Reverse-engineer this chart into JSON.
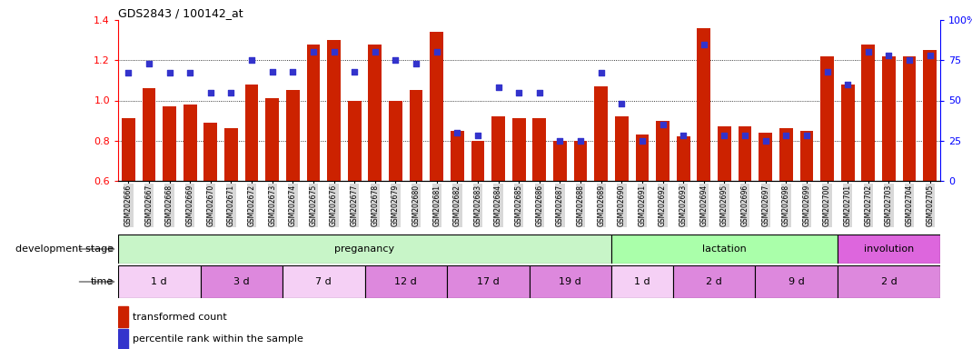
{
  "title": "GDS2843 / 100142_at",
  "samples": [
    "GSM202666",
    "GSM202667",
    "GSM202668",
    "GSM202669",
    "GSM202670",
    "GSM202671",
    "GSM202672",
    "GSM202673",
    "GSM202674",
    "GSM202675",
    "GSM202676",
    "GSM202677",
    "GSM202678",
    "GSM202679",
    "GSM202680",
    "GSM202681",
    "GSM202682",
    "GSM202683",
    "GSM202684",
    "GSM202685",
    "GSM202686",
    "GSM202687",
    "GSM202688",
    "GSM202689",
    "GSM202690",
    "GSM202691",
    "GSM202692",
    "GSM202693",
    "GSM202694",
    "GSM202695",
    "GSM202696",
    "GSM202697",
    "GSM202698",
    "GSM202699",
    "GSM202700",
    "GSM202701",
    "GSM202702",
    "GSM202703",
    "GSM202704",
    "GSM202705"
  ],
  "bar_values": [
    0.91,
    1.06,
    0.97,
    0.98,
    0.89,
    0.86,
    1.08,
    1.01,
    1.05,
    1.28,
    1.3,
    1.0,
    1.28,
    1.0,
    1.05,
    1.34,
    0.85,
    0.8,
    0.92,
    0.91,
    0.91,
    0.8,
    0.8,
    1.07,
    0.92,
    0.83,
    0.9,
    0.82,
    1.36,
    0.87,
    0.87,
    0.84,
    0.86,
    0.85,
    1.22,
    1.08,
    1.28,
    1.22,
    1.22,
    1.25
  ],
  "dot_values": [
    67,
    73,
    67,
    67,
    55,
    55,
    75,
    68,
    68,
    80,
    80,
    68,
    80,
    75,
    73,
    80,
    30,
    28,
    58,
    55,
    55,
    25,
    25,
    67,
    48,
    25,
    35,
    28,
    85,
    28,
    28,
    25,
    28,
    28,
    68,
    60,
    80,
    78,
    75,
    78
  ],
  "ylim_left": [
    0.6,
    1.4
  ],
  "ylim_right": [
    0,
    100
  ],
  "bar_color": "#cc2200",
  "dot_color": "#3333cc",
  "grid_values": [
    0.8,
    1.0,
    1.2
  ],
  "stage_defs": [
    {
      "label": "preganancy",
      "start": 0,
      "end": 24,
      "color": "#c8f5c8"
    },
    {
      "label": "lactation",
      "start": 24,
      "end": 35,
      "color": "#aaffaa"
    },
    {
      "label": "involution",
      "start": 35,
      "end": 40,
      "color": "#dd66dd"
    }
  ],
  "time_block_data": [
    {
      "start": 0,
      "end": 4,
      "color": "#f5d0f5",
      "label": "1 d"
    },
    {
      "start": 4,
      "end": 8,
      "color": "#dd88dd",
      "label": "3 d"
    },
    {
      "start": 8,
      "end": 12,
      "color": "#f5d0f5",
      "label": "7 d"
    },
    {
      "start": 12,
      "end": 16,
      "color": "#dd88dd",
      "label": "12 d"
    },
    {
      "start": 16,
      "end": 20,
      "color": "#dd88dd",
      "label": "17 d"
    },
    {
      "start": 20,
      "end": 24,
      "color": "#dd88dd",
      "label": "19 d"
    },
    {
      "start": 24,
      "end": 27,
      "color": "#f5d0f5",
      "label": "1 d"
    },
    {
      "start": 27,
      "end": 31,
      "color": "#dd88dd",
      "label": "2 d"
    },
    {
      "start": 31,
      "end": 35,
      "color": "#dd88dd",
      "label": "9 d"
    },
    {
      "start": 35,
      "end": 40,
      "color": "#dd88dd",
      "label": "2 d"
    }
  ],
  "stage_label": "development stage",
  "time_label": "time",
  "legend_bar": "transformed count",
  "legend_dot": "percentile rank within the sample",
  "left_yticks": [
    0.6,
    0.8,
    1.0,
    1.2,
    1.4
  ],
  "right_yticks": [
    0,
    25,
    50,
    75,
    100
  ],
  "right_yticklabels": [
    "0",
    "25",
    "50",
    "75",
    "100%"
  ]
}
